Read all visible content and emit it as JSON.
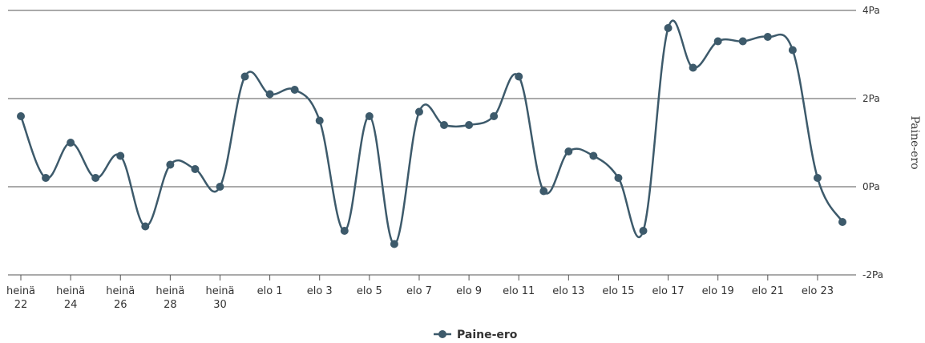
{
  "chart_data": {
    "type": "line",
    "ylabel": "Paine-ero",
    "ylim": [
      -2,
      4
    ],
    "yticks": [
      {
        "value": -2,
        "label": "-2Pa"
      },
      {
        "value": 0,
        "label": "0Pa"
      },
      {
        "value": 2,
        "label": "2Pa"
      },
      {
        "value": 4,
        "label": "4Pa"
      }
    ],
    "grid": true,
    "legend_position": "bottom-center",
    "xticks": [
      {
        "index": 0,
        "label": [
          "heinä",
          "22"
        ]
      },
      {
        "index": 2,
        "label": [
          "heinä",
          "24"
        ]
      },
      {
        "index": 4,
        "label": [
          "heinä",
          "26"
        ]
      },
      {
        "index": 6,
        "label": [
          "heinä",
          "28"
        ]
      },
      {
        "index": 8,
        "label": [
          "heinä",
          "30"
        ]
      },
      {
        "index": 10,
        "label": [
          "elo 1"
        ]
      },
      {
        "index": 12,
        "label": [
          "elo 3"
        ]
      },
      {
        "index": 14,
        "label": [
          "elo 5"
        ]
      },
      {
        "index": 16,
        "label": [
          "elo 7"
        ]
      },
      {
        "index": 18,
        "label": [
          "elo 9"
        ]
      },
      {
        "index": 20,
        "label": [
          "elo 11"
        ]
      },
      {
        "index": 22,
        "label": [
          "elo 13"
        ]
      },
      {
        "index": 24,
        "label": [
          "elo 15"
        ]
      },
      {
        "index": 26,
        "label": [
          "elo 17"
        ]
      },
      {
        "index": 28,
        "label": [
          "elo 19"
        ]
      },
      {
        "index": 30,
        "label": [
          "elo 21"
        ]
      },
      {
        "index": 32,
        "label": [
          "elo 23"
        ]
      }
    ],
    "series": [
      {
        "name": "Paine-ero",
        "color": "#3d5a6b",
        "values": [
          1.6,
          0.2,
          1.0,
          0.2,
          0.7,
          -0.9,
          0.5,
          0.4,
          0.0,
          2.5,
          2.1,
          2.2,
          1.5,
          -1.0,
          1.6,
          -1.3,
          1.7,
          1.4,
          1.4,
          1.6,
          2.5,
          -0.1,
          0.8,
          0.7,
          0.2,
          -1.0,
          3.6,
          2.7,
          3.3,
          3.3,
          3.4,
          3.1,
          0.2,
          -0.8
        ]
      }
    ]
  }
}
